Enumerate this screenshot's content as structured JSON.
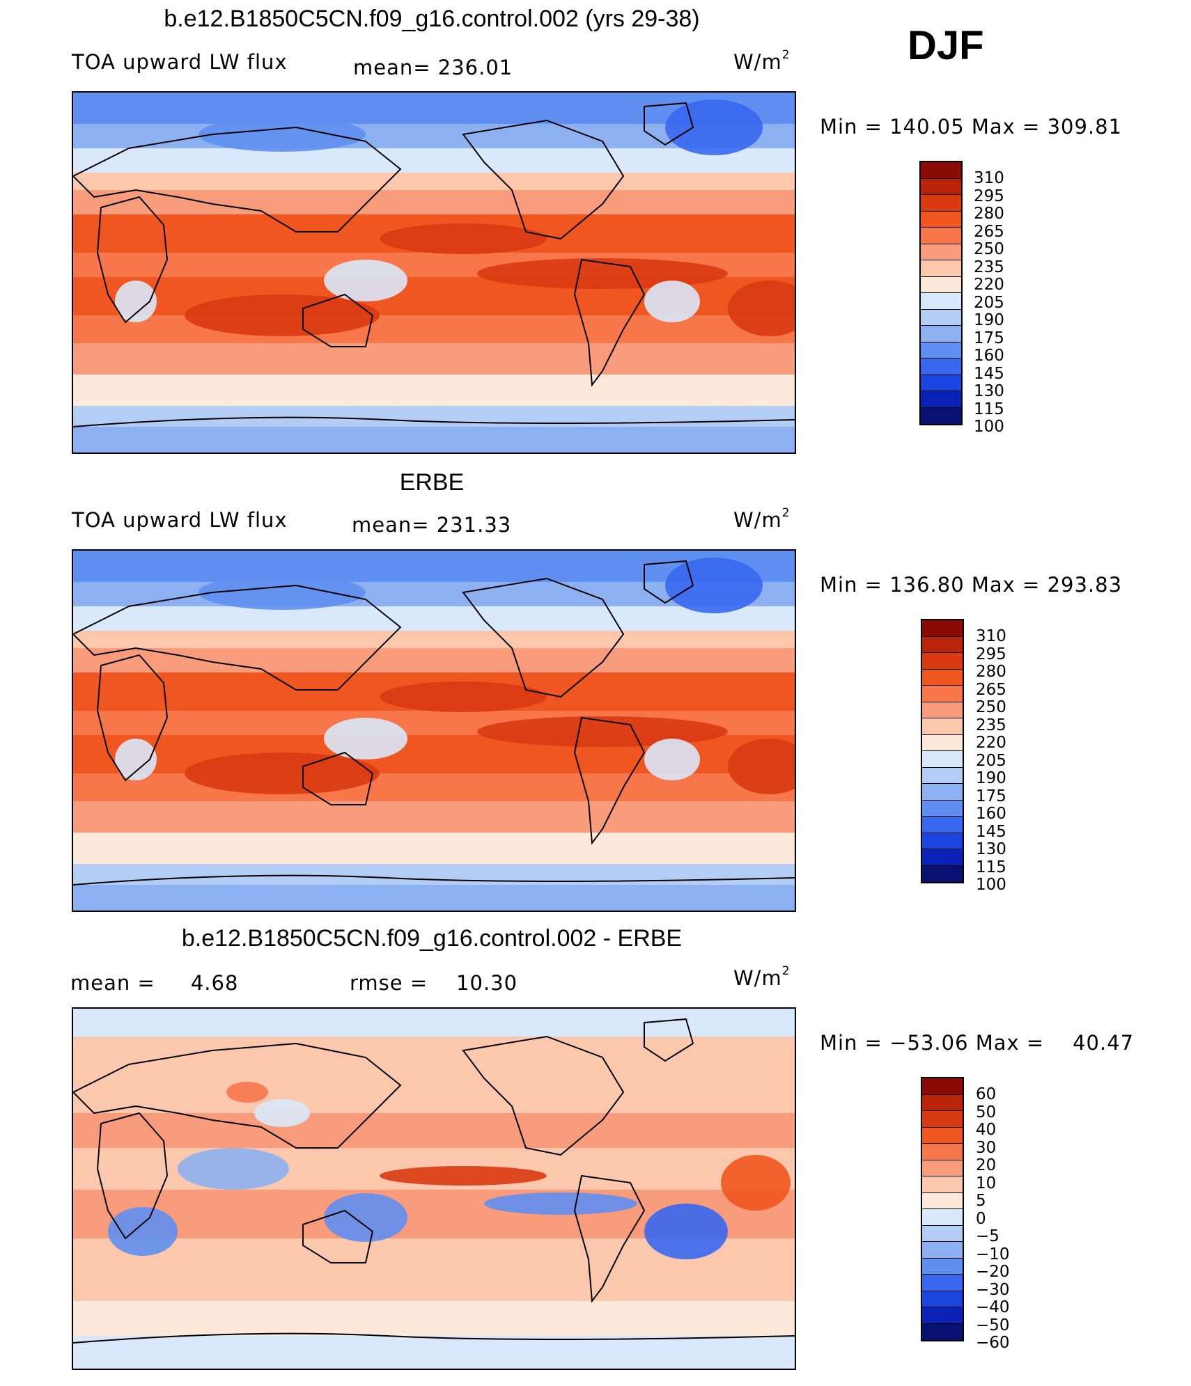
{
  "season": "DJF",
  "panels": [
    {
      "title": "b.e12.B1850C5CN.f09_g16.control.002 (yrs 29-38)",
      "left_label": "TOA upward LW flux",
      "center_label": "mean= 236.01",
      "units": "W/m",
      "units_sup": "2",
      "minmax": "Min = 140.05 Max = 309.81",
      "colorbar": {
        "labels": [
          "310",
          "295",
          "280",
          "265",
          "250",
          "235",
          "220",
          "205",
          "190",
          "175",
          "160",
          "145",
          "130",
          "115",
          "100"
        ],
        "colors": [
          "#8a0b06",
          "#b9240b",
          "#d93a12",
          "#f0561f",
          "#f7774b",
          "#f99c7c",
          "#fcc8ad",
          "#fde9d9",
          "#d9e8fa",
          "#b4cdf5",
          "#8cb0f0",
          "#5f8ff0",
          "#3768ee",
          "#1b44e0",
          "#0b22b8",
          "#061170"
        ]
      },
      "map_style": "absolute"
    },
    {
      "title": "ERBE",
      "left_label": "TOA upward LW flux",
      "center_label": "mean= 231.33",
      "units": "W/m",
      "units_sup": "2",
      "minmax": "Min = 136.80 Max = 293.83",
      "colorbar": {
        "labels": [
          "310",
          "295",
          "280",
          "265",
          "250",
          "235",
          "220",
          "205",
          "190",
          "175",
          "160",
          "145",
          "130",
          "115",
          "100"
        ],
        "colors": [
          "#8a0b06",
          "#b9240b",
          "#d93a12",
          "#f0561f",
          "#f7774b",
          "#f99c7c",
          "#fcc8ad",
          "#fde9d9",
          "#d9e8fa",
          "#b4cdf5",
          "#8cb0f0",
          "#5f8ff0",
          "#3768ee",
          "#1b44e0",
          "#0b22b8",
          "#061170"
        ]
      },
      "map_style": "absolute"
    },
    {
      "title": "b.e12.B1850C5CN.f09_g16.control.002 - ERBE",
      "left_label": "mean =     4.68",
      "center_label": "rmse =    10.30",
      "units": "W/m",
      "units_sup": "2",
      "minmax": "Min = −53.06 Max =    40.47",
      "colorbar": {
        "labels": [
          "60",
          "50",
          "40",
          "30",
          "20",
          "10",
          "5",
          "0",
          "−5",
          "−10",
          "−20",
          "−30",
          "−40",
          "−50",
          "−60"
        ],
        "colors": [
          "#8a0b06",
          "#b9240b",
          "#d93a12",
          "#f0561f",
          "#f7774b",
          "#f99c7c",
          "#fcc8ad",
          "#fde9d9",
          "#d9e8fa",
          "#b4cdf5",
          "#8cb0f0",
          "#5f8ff0",
          "#3768ee",
          "#1b44e0",
          "#0b22b8",
          "#061170"
        ]
      },
      "map_style": "difference"
    }
  ]
}
